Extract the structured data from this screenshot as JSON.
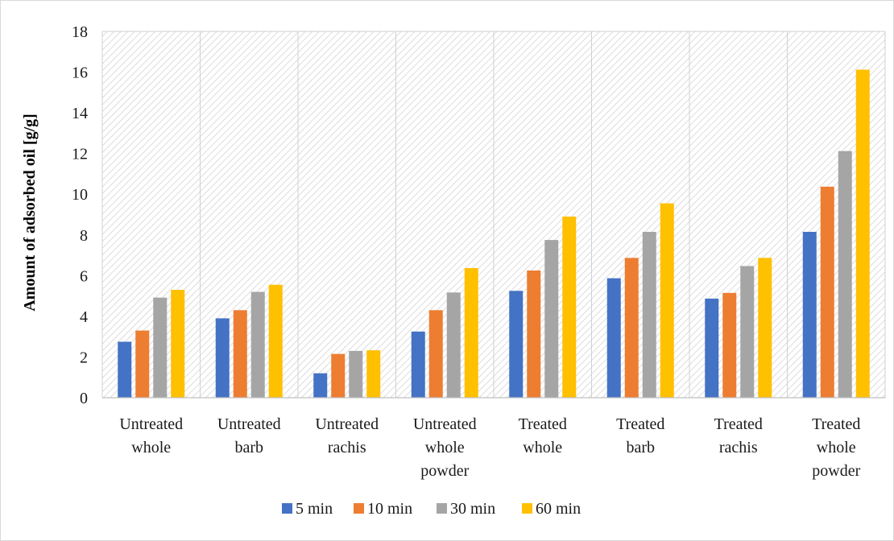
{
  "chart_data": {
    "type": "bar",
    "title": "",
    "xlabel": "",
    "ylabel": "Amount of adsorbed oil [g/g]",
    "ylim": [
      0,
      18
    ],
    "yticks": [
      0,
      2,
      4,
      6,
      8,
      10,
      12,
      14,
      16,
      18
    ],
    "grid": "vertical separators between categories, hatched plot background",
    "legend_position": "bottom",
    "categories": [
      [
        "Untreated",
        "whole"
      ],
      [
        "Untreated",
        "barb"
      ],
      [
        "Untreated",
        "rachis"
      ],
      [
        "Untreated",
        "whole",
        "powder"
      ],
      [
        "Treated",
        "whole"
      ],
      [
        "Treated",
        "barb"
      ],
      [
        "Treated",
        "rachis"
      ],
      [
        "Treated",
        "whole",
        "powder"
      ]
    ],
    "series": [
      {
        "name": "5 min",
        "color": "#4472c4",
        "values": [
          2.75,
          3.9,
          1.2,
          3.25,
          5.25,
          5.87,
          4.87,
          8.15
        ]
      },
      {
        "name": "10 min",
        "color": "#ed7d31",
        "values": [
          3.3,
          4.3,
          2.15,
          4.3,
          6.25,
          6.87,
          5.15,
          10.37
        ]
      },
      {
        "name": "30 min",
        "color": "#a5a5a5",
        "values": [
          4.92,
          5.2,
          2.3,
          5.17,
          7.75,
          8.15,
          6.47,
          12.12
        ]
      },
      {
        "name": "60 min",
        "color": "#ffc000",
        "values": [
          5.3,
          5.55,
          2.33,
          6.37,
          8.9,
          9.55,
          6.87,
          16.12
        ]
      }
    ]
  }
}
